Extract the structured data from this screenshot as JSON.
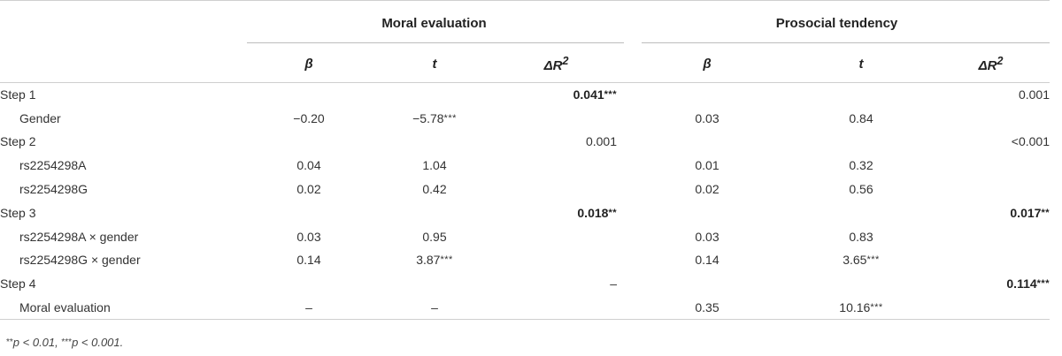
{
  "header": {
    "groups": [
      "Moral evaluation",
      "Prosocial tendency"
    ],
    "columns": [
      {
        "symbol": "β",
        "sup": ""
      },
      {
        "symbol": "t",
        "sup": ""
      },
      {
        "symbol": "ΔR",
        "sup": "2"
      },
      {
        "symbol": "β",
        "sup": ""
      },
      {
        "symbol": "t",
        "sup": ""
      },
      {
        "symbol": "ΔR",
        "sup": "2"
      }
    ]
  },
  "rows": [
    {
      "label": "Step 1",
      "indent": false,
      "cells": [
        {
          "v": "",
          "s": ""
        },
        {
          "v": "",
          "s": ""
        },
        {
          "v": "0.041",
          "s": "***",
          "bold": true
        },
        {
          "v": "",
          "s": ""
        },
        {
          "v": "",
          "s": ""
        },
        {
          "v": "0.001",
          "s": ""
        }
      ]
    },
    {
      "label": "Gender",
      "indent": true,
      "cells": [
        {
          "v": "−0.20",
          "s": ""
        },
        {
          "v": "−5.78",
          "s": "***"
        },
        {
          "v": "",
          "s": ""
        },
        {
          "v": "0.03",
          "s": ""
        },
        {
          "v": "0.84",
          "s": ""
        },
        {
          "v": "",
          "s": ""
        }
      ]
    },
    {
      "label": "Step 2",
      "indent": false,
      "cells": [
        {
          "v": "",
          "s": ""
        },
        {
          "v": "",
          "s": ""
        },
        {
          "v": "0.001",
          "s": ""
        },
        {
          "v": "",
          "s": ""
        },
        {
          "v": "",
          "s": ""
        },
        {
          "v": "<0.001",
          "s": ""
        }
      ]
    },
    {
      "label": "rs2254298A",
      "indent": true,
      "cells": [
        {
          "v": "0.04",
          "s": ""
        },
        {
          "v": "1.04",
          "s": ""
        },
        {
          "v": "",
          "s": ""
        },
        {
          "v": "0.01",
          "s": ""
        },
        {
          "v": "0.32",
          "s": ""
        },
        {
          "v": "",
          "s": ""
        }
      ]
    },
    {
      "label": "rs2254298G",
      "indent": true,
      "cells": [
        {
          "v": "0.02",
          "s": ""
        },
        {
          "v": "0.42",
          "s": ""
        },
        {
          "v": "",
          "s": ""
        },
        {
          "v": "0.02",
          "s": ""
        },
        {
          "v": "0.56",
          "s": ""
        },
        {
          "v": "",
          "s": ""
        }
      ]
    },
    {
      "label": "Step 3",
      "indent": false,
      "cells": [
        {
          "v": "",
          "s": ""
        },
        {
          "v": "",
          "s": ""
        },
        {
          "v": "0.018",
          "s": "**",
          "bold": true
        },
        {
          "v": "",
          "s": ""
        },
        {
          "v": "",
          "s": ""
        },
        {
          "v": "0.017",
          "s": "**",
          "bold": true
        }
      ]
    },
    {
      "label": "rs2254298A × gender",
      "indent": true,
      "cells": [
        {
          "v": "0.03",
          "s": ""
        },
        {
          "v": "0.95",
          "s": ""
        },
        {
          "v": "",
          "s": ""
        },
        {
          "v": "0.03",
          "s": ""
        },
        {
          "v": "0.83",
          "s": ""
        },
        {
          "v": "",
          "s": ""
        }
      ]
    },
    {
      "label": "rs2254298G × gender",
      "indent": true,
      "cells": [
        {
          "v": "0.14",
          "s": ""
        },
        {
          "v": "3.87",
          "s": "***"
        },
        {
          "v": "",
          "s": ""
        },
        {
          "v": "0.14",
          "s": ""
        },
        {
          "v": "3.65",
          "s": "***"
        },
        {
          "v": "",
          "s": ""
        }
      ]
    },
    {
      "label": "Step 4",
      "indent": false,
      "cells": [
        {
          "v": "",
          "s": ""
        },
        {
          "v": "",
          "s": ""
        },
        {
          "v": "–",
          "s": ""
        },
        {
          "v": "",
          "s": ""
        },
        {
          "v": "",
          "s": ""
        },
        {
          "v": "0.114",
          "s": "***",
          "bold": true
        }
      ]
    },
    {
      "label": "Moral evaluation",
      "indent": true,
      "cells": [
        {
          "v": "–",
          "s": ""
        },
        {
          "v": "–",
          "s": ""
        },
        {
          "v": "",
          "s": ""
        },
        {
          "v": "0.35",
          "s": ""
        },
        {
          "v": "10.16",
          "s": "***"
        },
        {
          "v": "",
          "s": ""
        }
      ]
    }
  ],
  "footnote": {
    "stars1": "**",
    "text1": "p < 0.01, ",
    "stars2": "***",
    "text2": "p < 0.001."
  }
}
